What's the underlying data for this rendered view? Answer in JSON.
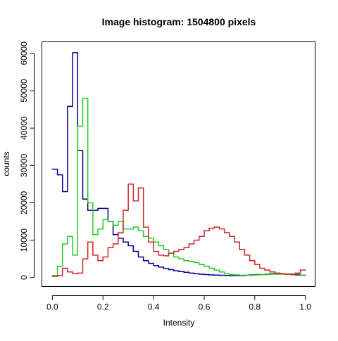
{
  "chart_data": {
    "type": "line",
    "title": "Image histogram: 1504800 pixels",
    "xlabel": "Intensity",
    "ylabel": "counts",
    "xlim": [
      -0.04,
      1.04
    ],
    "ylim": [
      -2500,
      63000
    ],
    "xticks": [
      0.0,
      0.2,
      0.4,
      0.6,
      0.8,
      1.0
    ],
    "xtick_labels": [
      "0.0",
      "0.2",
      "0.4",
      "0.6",
      "0.8",
      "1.0"
    ],
    "yticks": [
      0,
      10000,
      20000,
      30000,
      40000,
      50000,
      60000
    ],
    "ytick_labels": [
      "0",
      "10000",
      "20000",
      "30000",
      "40000",
      "50000",
      "60000"
    ],
    "grid": false,
    "legend": "none",
    "bin_width": 0.02,
    "bin_starts": [
      0.0,
      0.02,
      0.04,
      0.06,
      0.08,
      0.1,
      0.12,
      0.14,
      0.16,
      0.18,
      0.2,
      0.22,
      0.24,
      0.26,
      0.28,
      0.3,
      0.32,
      0.34,
      0.36,
      0.38,
      0.4,
      0.42,
      0.44,
      0.46,
      0.48,
      0.5,
      0.52,
      0.54,
      0.56,
      0.58,
      0.6,
      0.62,
      0.64,
      0.66,
      0.68,
      0.7,
      0.72,
      0.74,
      0.76,
      0.78,
      0.8,
      0.82,
      0.84,
      0.86,
      0.88,
      0.9,
      0.92,
      0.94,
      0.96,
      0.98
    ],
    "series": [
      {
        "color": "#00008B",
        "values": [
          29000,
          27500,
          23000,
          45800,
          60200,
          34000,
          21000,
          18000,
          18000,
          18500,
          18500,
          15000,
          11500,
          10500,
          9500,
          8500,
          7000,
          5500,
          4500,
          3800,
          3200,
          2800,
          2400,
          2100,
          1800,
          1600,
          1400,
          1200,
          1000,
          900,
          800,
          700,
          650,
          600,
          550,
          500,
          500,
          500,
          600,
          700,
          800,
          800,
          900,
          1000,
          1000,
          1000,
          900,
          800,
          700,
          600
        ]
      },
      {
        "color": "#22CC22",
        "values": [
          500,
          3000,
          9000,
          11000,
          6000,
          40500,
          48000,
          20000,
          11500,
          13000,
          15500,
          15000,
          14000,
          15000,
          13000,
          13000,
          13500,
          12500,
          11000,
          10500,
          9500,
          8500,
          7500,
          6500,
          5500,
          5000,
          4500,
          4300,
          4000,
          3500,
          3000,
          2500,
          2000,
          1500,
          1000,
          800,
          700,
          600,
          600,
          600,
          700,
          800,
          800,
          900,
          900,
          900,
          900,
          1000,
          1000,
          600
        ]
      },
      {
        "color": "#CD2626",
        "values": [
          300,
          500,
          2500,
          1500,
          1000,
          1200,
          5000,
          9500,
          6000,
          4500,
          5500,
          8000,
          9000,
          12000,
          18000,
          25000,
          20500,
          24000,
          13500,
          9500,
          7000,
          6000,
          5800,
          6500,
          7000,
          7500,
          8000,
          9000,
          10000,
          11000,
          12500,
          13200,
          13500,
          13000,
          12000,
          11000,
          9500,
          7500,
          6000,
          4500,
          3500,
          2500,
          2000,
          1500,
          1200,
          1000,
          900,
          800,
          1200,
          2000
        ]
      }
    ]
  }
}
